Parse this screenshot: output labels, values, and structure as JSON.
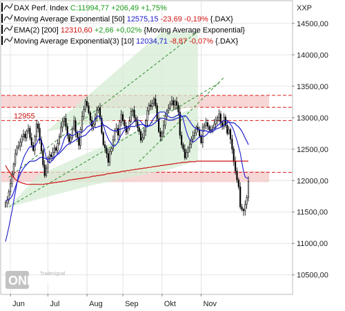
{
  "chart_data": {
    "type": "line",
    "symbol": "XXP",
    "legend": [
      {
        "icon": "line-icon",
        "parts": [
          {
            "text": "DAX Perf. Index",
            "color": "#000000"
          },
          {
            "text": " C:11994,77 ",
            "color": "#1a9a1a"
          },
          {
            "text": "+206,49 +1,75%",
            "color": "#1a9a1a"
          }
        ]
      },
      {
        "icon": "line-icon",
        "parts": [
          {
            "text": "Moving Average Exponential [50]",
            "color": "#000000"
          },
          {
            "text": " 12575,15 ",
            "color": "#1a1acc"
          },
          {
            "text": "-23,69 -0,19% ",
            "color": "#d01010"
          },
          {
            "text": "{.DAX}",
            "color": "#000000"
          }
        ]
      },
      {
        "icon": "line-icon",
        "parts": [
          {
            "text": "EMA(2) [200]",
            "color": "#000000"
          },
          {
            "text": " 12310,60 ",
            "color": "#d01010"
          },
          {
            "text": "+2,66 +0,02% ",
            "color": "#1a9a1a"
          },
          {
            "text": "{Moving Average Exponential}",
            "color": "#000000"
          }
        ]
      },
      {
        "icon": "line-icon",
        "parts": [
          {
            "text": "Moving Average Exponential(3) [10]",
            "color": "#000000"
          },
          {
            "text": " 12034,71 ",
            "color": "#1a1acc"
          },
          {
            "text": "-8,87 -0,07% ",
            "color": "#d01010"
          },
          {
            "text": "{.DAX}",
            "color": "#000000"
          }
        ]
      }
    ],
    "y_ticks": [
      10500,
      11000,
      11500,
      12000,
      12500,
      13000,
      13500,
      14000,
      14500
    ],
    "y_tick_labels": [
      "10500,00",
      "11000,00",
      "11500,00",
      "12000,00",
      "12500,00",
      "13000,00",
      "13500,00",
      "14000,00",
      "14500,00"
    ],
    "ylim": [
      10200,
      14850
    ],
    "x_labels": [
      "Jun",
      "Jul",
      "Aug",
      "Sep",
      "Okt",
      "Nov"
    ],
    "annotation": {
      "text": "12955",
      "value": 12955
    },
    "resistance_zone": [
      13165,
      13355
    ],
    "support_zone": [
      11975,
      12150
    ],
    "support_level": 12130,
    "colors": {
      "price": "#000000",
      "ema50": "#1a1acc",
      "ema200": "#cc1010",
      "ema10": "#1a1acc",
      "zone": "#f4c4c4",
      "channel": "#d6ecd4",
      "up": "#ffffff",
      "down": "#000000"
    },
    "watermark": {
      "big": "ONLINE",
      "small": "Tradesignal"
    },
    "series": [
      {
        "name": "DAX Perf. Index",
        "kind": "candles",
        "values": [
          11650,
          11690,
          11820,
          11950,
          12100,
          12260,
          12430,
          12520,
          12550,
          12610,
          12700,
          12740,
          12680,
          12790,
          12830,
          12680,
          12560,
          12480,
          12700,
          12900,
          12830,
          12640,
          12470,
          12250,
          12080,
          12200,
          12360,
          12410,
          12380,
          12450,
          12520,
          12480,
          12590,
          12700,
          12850,
          12940,
          12990,
          12860,
          12720,
          12620,
          12680,
          12820,
          12950,
          12770,
          12690,
          12560,
          12810,
          13020,
          13130,
          13260,
          13190,
          13080,
          12960,
          12860,
          12900,
          12990,
          13120,
          13160,
          12990,
          12760,
          12570,
          12520,
          12430,
          12290,
          12460,
          12510,
          12650,
          12790,
          12830,
          12720,
          12930,
          13050,
          12950,
          12870,
          12770,
          12830,
          12940,
          13100,
          13120,
          13000,
          12940,
          12840,
          12780,
          12640,
          12680,
          12790,
          12950,
          13110,
          13200,
          13180,
          13230,
          13300,
          13190,
          12980,
          12780,
          12700,
          12760,
          12880,
          13020,
          13110,
          13150,
          13220,
          13270,
          13200,
          13260,
          13200,
          13090,
          12720,
          12570,
          12500,
          12360,
          12450,
          12520,
          12580,
          12660,
          12710,
          12760,
          12850,
          12810,
          12710,
          12600,
          12850,
          12880,
          12920,
          12860,
          12810,
          12790,
          12840,
          12900,
          12960,
          13000,
          13060,
          12920,
          12860,
          13010,
          12880,
          12750,
          12810,
          12660,
          12500,
          12300,
          12150,
          12010,
          11900,
          11580,
          11540,
          11520,
          11620,
          11730,
          11990
        ]
      },
      {
        "name": "Moving Average Exponential [50]",
        "values": [
          11680,
          11690,
          11700,
          11720,
          11760,
          11830,
          11910,
          11990,
          12060,
          12120,
          12170,
          12210,
          12240,
          12270,
          12300,
          12310,
          12310,
          12310,
          12320,
          12340,
          12360,
          12370,
          12370,
          12360,
          12340,
          12340,
          12340,
          12350,
          12360,
          12380,
          12400,
          12420,
          12440,
          12470,
          12500,
          12530,
          12560,
          12580,
          12600,
          12610,
          12620,
          12640,
          12660,
          12680,
          12690,
          12700,
          12710,
          12720,
          12750,
          12780,
          12810,
          12830,
          12840,
          12840,
          12850,
          12860,
          12870,
          12880,
          12880,
          12870,
          12850,
          12830,
          12810,
          12800,
          12790,
          12790,
          12800,
          12810,
          12820,
          12830,
          12840,
          12850,
          12860,
          12860,
          12860,
          12860,
          12860,
          12870,
          12880,
          12890,
          12890,
          12890,
          12880,
          12870,
          12870,
          12870,
          12880,
          12900,
          12920,
          12940,
          12960,
          12980,
          12990,
          12990,
          12980,
          12970,
          12960,
          12960,
          12960,
          12970,
          12980,
          12990,
          13000,
          13010,
          13020,
          13030,
          13030,
          13000,
          12960,
          12920,
          12880,
          12850,
          12830,
          12820,
          12810,
          12800,
          12790,
          12790,
          12790,
          12780,
          12770,
          12770,
          12780,
          12800,
          12820,
          12830,
          12840,
          12850,
          12870,
          12890,
          12910,
          12930,
          12930,
          12920,
          12920,
          12910,
          12880,
          12860,
          12830,
          12790,
          12740,
          12680,
          12630,
          12570
        ]
      },
      {
        "name": "EMA(2) [200]",
        "values": [
          12240,
          12180,
          12130,
          12080,
          12040,
          12010,
          11990,
          11970,
          11960,
          11950,
          11940,
          11940,
          11940,
          11940,
          11940,
          11940,
          11940,
          11940,
          11940,
          11950,
          11950,
          11960,
          11960,
          11970,
          11970,
          11980,
          11980,
          11990,
          11990,
          12000,
          12010,
          12010,
          12020,
          12020,
          12030,
          12030,
          12040,
          12040,
          12050,
          12050,
          12060,
          12070,
          12070,
          12080,
          12080,
          12090,
          12090,
          12100,
          12110,
          12110,
          12120,
          12120,
          12130,
          12130,
          12140,
          12150,
          12150,
          12160,
          12160,
          12170,
          12170,
          12180,
          12180,
          12190,
          12190,
          12200,
          12200,
          12210,
          12210,
          12220,
          12220,
          12230,
          12230,
          12240,
          12240,
          12250,
          12250,
          12260,
          12260,
          12270,
          12270,
          12280,
          12280,
          12290,
          12290,
          12290,
          12300,
          12300,
          12300,
          12300,
          12310,
          12310,
          12310,
          12310,
          12310,
          12310,
          12310,
          12310,
          12310,
          12310,
          12310,
          12310,
          12310,
          12310,
          12310,
          12310,
          12310,
          12310,
          12310,
          12310,
          12310,
          12310,
          12310,
          12310,
          12310
        ]
      },
      {
        "name": "Moving Average Exponential(3) [10]",
        "values": [
          11030,
          11140,
          11260,
          11390,
          11520,
          11680,
          11820,
          11960,
          12090,
          12200,
          12280,
          12360,
          12420,
          12460,
          12510,
          12540,
          12530,
          12530,
          12550,
          12590,
          12650,
          12680,
          12620,
          12560,
          12450,
          12350,
          12300,
          12280,
          12310,
          12330,
          12370,
          12400,
          12440,
          12470,
          12520,
          12600,
          12680,
          12720,
          12750,
          12740,
          12720,
          12710,
          12730,
          12760,
          12770,
          12780,
          12760,
          12780,
          12800,
          12830,
          12860,
          12870,
          12890,
          12930,
          12950,
          12990,
          13030,
          13020,
          13000,
          12930,
          12850,
          12760,
          12700,
          12640,
          12610,
          12560,
          12540,
          12560,
          12590,
          12640,
          12700,
          12740,
          12790,
          12810,
          12830,
          12850,
          12880,
          12900,
          12930,
          12950,
          12960,
          12960,
          12950,
          12920,
          12890,
          12860,
          12850,
          12860,
          12890,
          12930,
          12980,
          13010,
          13050,
          13070,
          13090,
          13090,
          13090,
          13090,
          13060,
          13030,
          13010,
          13000,
          13000,
          13010,
          13030,
          13040,
          13060,
          13040,
          13000,
          12900,
          12800,
          12720,
          12660,
          12630,
          12620,
          12620,
          12640,
          12670,
          12690,
          12710,
          12710,
          12700,
          12720,
          12740,
          12780,
          12800,
          12810,
          12820,
          12840,
          12870,
          12890,
          12920,
          12940,
          12950,
          12950,
          12960,
          12930,
          12900,
          12860,
          12800,
          12720,
          12640,
          12540,
          12440,
          12290,
          12150,
          12060,
          12040,
          12034
        ]
      }
    ]
  }
}
